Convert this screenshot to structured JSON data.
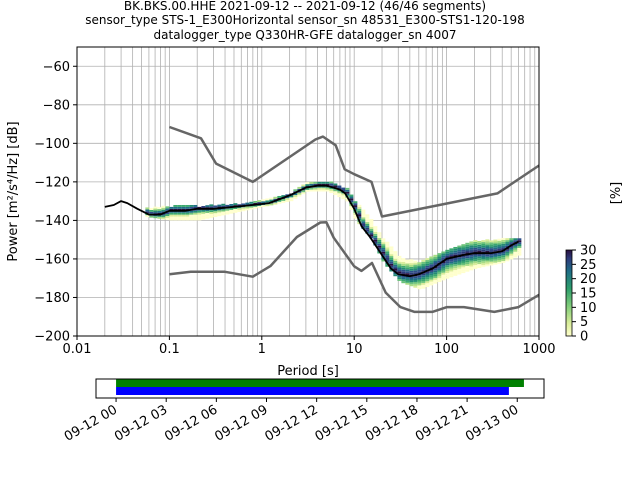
{
  "title_lines": [
    "BK.BKS.00.HHE   2021-09-12 -- 2021-09-12  (46/46 segments)",
    "sensor_type STS-1_E300Horizontal sensor_sn 48531_E300-STS1-120-198",
    "datalogger_type Q330HR-GFE datalogger_sn 4007"
  ],
  "chart_data": [
    {
      "type": "heatmap",
      "title": "BK.BKS.00.HHE   2021-09-12 -- 2021-09-12  (46/46 segments)",
      "xlabel": "Period [s]",
      "ylabel": "Power [m²/s⁴/Hz] [dB]",
      "xscale": "log",
      "xlim": [
        0.01,
        1000
      ],
      "ylim": [
        -200,
        -50
      ],
      "x_ticks": [
        "0.01",
        "0.1",
        "1",
        "10",
        "100",
        "1000"
      ],
      "y_ticks": [
        "−200",
        "−180",
        "−160",
        "−140",
        "−120",
        "−100",
        "−80",
        "−60"
      ],
      "grid": true,
      "colorbar": {
        "label": "[%]",
        "range": [
          0,
          30
        ],
        "ticks": [
          "0",
          "5",
          "10",
          "15",
          "20",
          "25",
          "30"
        ],
        "colormap": "viridis-like (pale yellow to dark purple)"
      },
      "series": [
        {
          "role": "noise-model-high",
          "color": "#666666",
          "x": [
            0.1,
            0.22,
            0.32,
            0.8,
            3.8,
            4.6,
            6.3,
            7.9,
            10,
            15.4,
            20,
            354.8,
            1000
          ],
          "y": [
            -91.5,
            -97.4,
            -110.5,
            -120.0,
            -98.0,
            -96.5,
            -101.0,
            -113.5,
            -116.0,
            -120.0,
            -138.0,
            -126.0,
            -111.5
          ]
        },
        {
          "role": "noise-model-low",
          "color": "#666666",
          "x": [
            0.1,
            0.17,
            0.4,
            0.8,
            1.24,
            2.4,
            4.3,
            5.0,
            6.0,
            10,
            12,
            15.6,
            21.9,
            31.6,
            45,
            70,
            101,
            154,
            328,
            600,
            1000
          ],
          "y": [
            -168.0,
            -166.7,
            -166.7,
            -169.2,
            -163.7,
            -148.6,
            -141.1,
            -141.0,
            -149.0,
            -163.8,
            -166.2,
            -162.1,
            -177.5,
            -185.0,
            -187.5,
            -187.5,
            -185.0,
            -185.0,
            -187.5,
            -185.0,
            -178.6
          ]
        },
        {
          "role": "mode",
          "color": "#000000",
          "x": [
            0.02,
            0.025,
            0.03,
            0.035,
            0.045,
            0.06,
            0.08,
            0.1,
            0.15,
            0.2,
            0.3,
            0.5,
            0.8,
            1.2,
            2,
            3,
            4,
            5,
            6,
            7,
            8,
            10,
            12,
            15,
            20,
            25,
            30,
            40,
            50,
            70,
            100,
            150,
            200,
            300,
            400,
            500,
            600
          ],
          "y": [
            -133,
            -132,
            -130,
            -131,
            -134,
            -137,
            -137,
            -135,
            -135,
            -134,
            -134,
            -133,
            -132,
            -131,
            -127,
            -123,
            -122,
            -122,
            -123,
            -124,
            -126,
            -134,
            -143,
            -149,
            -158,
            -165,
            -168,
            -169,
            -168,
            -165,
            -160,
            -158,
            -157,
            -157,
            -156,
            -153,
            -151
          ]
        },
        {
          "role": "pdf-spread-upper",
          "color": "#3ba86e",
          "x": [
            0.05,
            0.1,
            0.2,
            0.5,
            1,
            2,
            3,
            5,
            8,
            10,
            15,
            20,
            30,
            50,
            100,
            200,
            400,
            600
          ],
          "y": [
            -134,
            -133,
            -133,
            -132,
            -130,
            -126,
            -121,
            -120,
            -124,
            -131,
            -141,
            -150,
            -160,
            -162,
            -155,
            -151,
            -150,
            -150
          ]
        },
        {
          "role": "pdf-spread-lower",
          "color": "#d9ed9a",
          "x": [
            0.05,
            0.1,
            0.2,
            0.5,
            1,
            2,
            3,
            5,
            8,
            10,
            15,
            20,
            30,
            50,
            100,
            200,
            400,
            600
          ],
          "y": [
            -138,
            -140,
            -140,
            -136,
            -133,
            -130,
            -125,
            -125,
            -130,
            -140,
            -150,
            -162,
            -172,
            -176,
            -170,
            -165,
            -162,
            -158
          ]
        }
      ]
    },
    {
      "type": "bar",
      "role": "data-coverage-timeline",
      "x_ticks": [
        "09-12 00",
        "09-12 03",
        "09-12 06",
        "09-12 09",
        "09-12 12",
        "09-12 15",
        "09-12 18",
        "09-12 21",
        "09-13 00"
      ],
      "xlim_hours": [
        -1.2,
        25.6
      ],
      "series": [
        {
          "color": "#008000",
          "start_hours": 0,
          "end_hours": 24.4
        },
        {
          "color": "#0000ff",
          "start_hours": 0,
          "end_hours": 23.5
        }
      ]
    }
  ]
}
